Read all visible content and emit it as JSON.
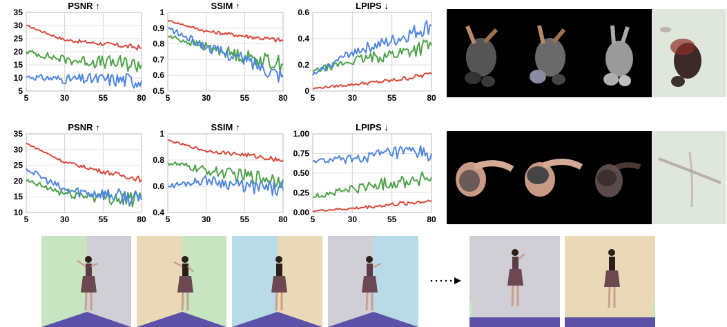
{
  "colors": {
    "red": "#d9493a",
    "green": "#4ea24a",
    "blue": "#4f86e0",
    "room_green": "#c7e5c0",
    "room_gray": "#d0cfd5",
    "room_tan": "#ead9b6",
    "room_blue": "#b9dbe8",
    "floor": "#5b52a8"
  },
  "chart_data": [
    {
      "type": "line",
      "title": "PSNR ↑",
      "x": [
        5,
        30,
        55,
        80
      ],
      "ylim": [
        5,
        35
      ],
      "yticks": [
        5,
        10,
        15,
        20,
        25,
        30,
        35
      ],
      "series": [
        {
          "color": "red",
          "values": [
            30,
            24.5,
            23,
            21.5
          ]
        },
        {
          "color": "green",
          "values": [
            20,
            17,
            16,
            15
          ]
        },
        {
          "color": "blue",
          "values": [
            10.5,
            9.5,
            9.5,
            9
          ]
        }
      ]
    },
    {
      "type": "line",
      "title": "SSIM ↑",
      "x": [
        5,
        30,
        55,
        80
      ],
      "ylim": [
        0.5,
        1.0
      ],
      "yticks": [
        0.5,
        0.6,
        0.7,
        0.8,
        0.9,
        1.0
      ],
      "series": [
        {
          "color": "red",
          "values": [
            0.95,
            0.88,
            0.85,
            0.82
          ]
        },
        {
          "color": "green",
          "values": [
            0.85,
            0.78,
            0.72,
            0.67
          ]
        },
        {
          "color": "blue",
          "values": [
            0.9,
            0.78,
            0.7,
            0.6
          ]
        }
      ]
    },
    {
      "type": "line",
      "title": "LPIPS ↓",
      "x": [
        5,
        30,
        55,
        80
      ],
      "ylim": [
        0.0,
        0.6
      ],
      "yticks": [
        0.0,
        0.2,
        0.4,
        0.6
      ],
      "series": [
        {
          "color": "red",
          "values": [
            0.02,
            0.05,
            0.08,
            0.13
          ]
        },
        {
          "color": "green",
          "values": [
            0.15,
            0.23,
            0.28,
            0.35
          ]
        },
        {
          "color": "blue",
          "values": [
            0.12,
            0.3,
            0.38,
            0.5
          ]
        }
      ]
    },
    {
      "type": "line",
      "title": "PSNR ↑",
      "x": [
        5,
        30,
        55,
        80
      ],
      "ylim": [
        10,
        35
      ],
      "yticks": [
        10,
        15,
        20,
        25,
        30,
        35
      ],
      "series": [
        {
          "color": "red",
          "values": [
            32,
            26,
            23,
            20.5
          ]
        },
        {
          "color": "green",
          "values": [
            20,
            16,
            15,
            14
          ]
        },
        {
          "color": "blue",
          "values": [
            24,
            17,
            16,
            14
          ]
        }
      ]
    },
    {
      "type": "line",
      "title": "SSIM ↑",
      "x": [
        5,
        30,
        55,
        80
      ],
      "ylim": [
        0.4,
        1.0
      ],
      "yticks": [
        0.4,
        0.6,
        0.8,
        1.0
      ],
      "series": [
        {
          "color": "red",
          "values": [
            0.95,
            0.87,
            0.84,
            0.8
          ]
        },
        {
          "color": "green",
          "values": [
            0.78,
            0.72,
            0.68,
            0.65
          ]
        },
        {
          "color": "blue",
          "values": [
            0.6,
            0.65,
            0.6,
            0.57
          ]
        }
      ]
    },
    {
      "type": "line",
      "title": "LPIPS ↓",
      "x": [
        5,
        30,
        55,
        80
      ],
      "ylim": [
        0.0,
        1.0
      ],
      "yticks": [
        "0.00",
        "0.25",
        "0.50",
        "0.75",
        "1.00"
      ],
      "series": [
        {
          "color": "red",
          "values": [
            0.02,
            0.05,
            0.1,
            0.15
          ]
        },
        {
          "color": "green",
          "values": [
            0.2,
            0.3,
            0.38,
            0.45
          ]
        },
        {
          "color": "blue",
          "values": [
            0.65,
            0.68,
            0.75,
            0.75
          ]
        }
      ]
    }
  ]
}
